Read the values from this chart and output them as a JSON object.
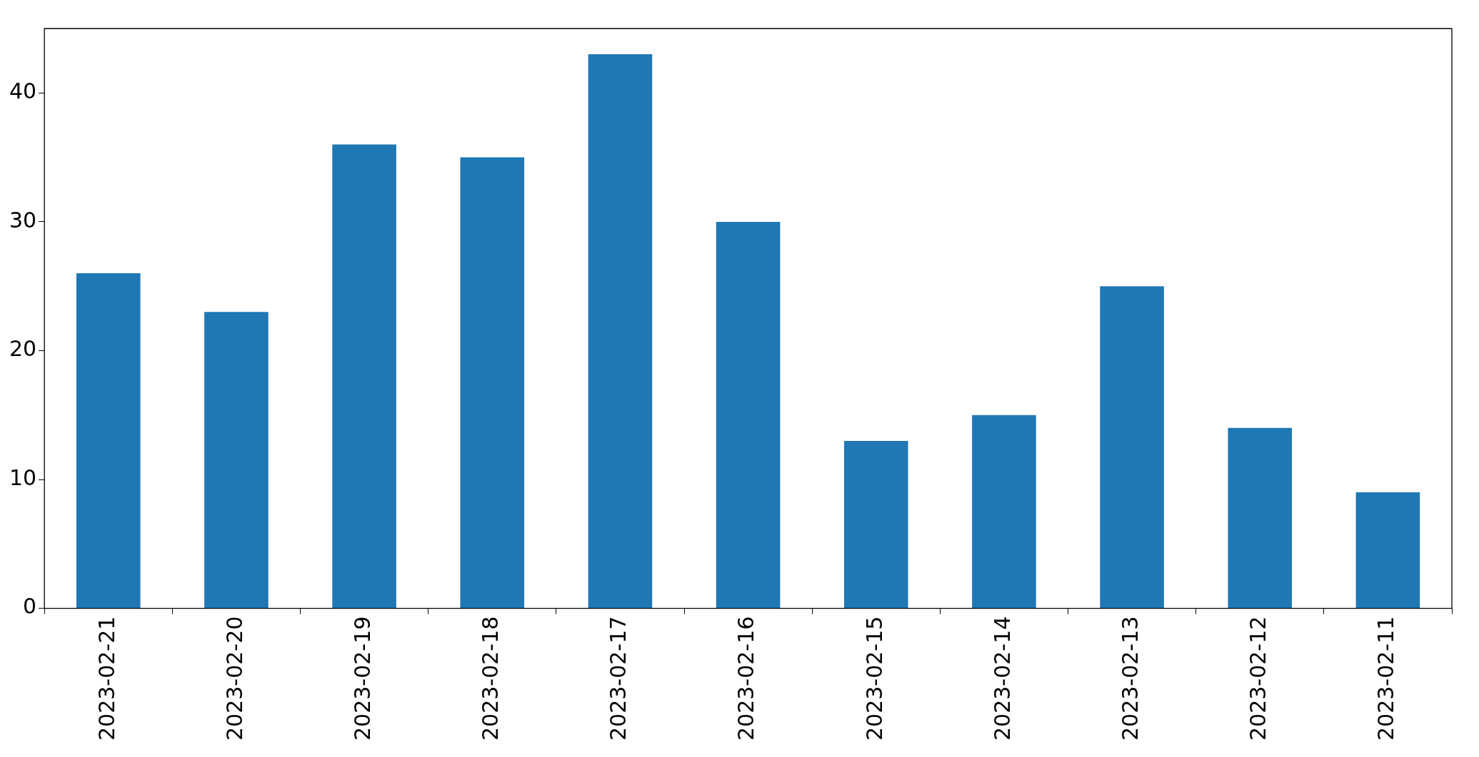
{
  "chart_data": {
    "type": "bar",
    "categories": [
      "2023-02-21",
      "2023-02-20",
      "2023-02-19",
      "2023-02-18",
      "2023-02-17",
      "2023-02-16",
      "2023-02-15",
      "2023-02-14",
      "2023-02-13",
      "2023-02-12",
      "2023-02-11"
    ],
    "values": [
      26,
      23,
      36,
      35,
      43,
      30,
      13,
      15,
      25,
      14,
      9
    ],
    "color": "#1f77b4",
    "ylim": [
      0,
      45
    ],
    "yticks": [
      0,
      10,
      20,
      30,
      40
    ]
  }
}
